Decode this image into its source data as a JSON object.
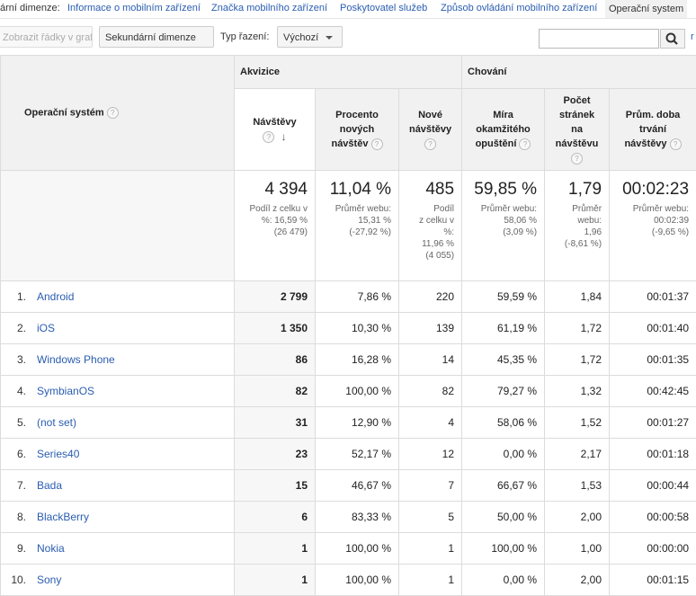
{
  "primary_dimension": {
    "label": "ární dimenze:",
    "links": [
      "Informace o mobilním zařízení",
      "Značka mobilního zařízení",
      "Poskytovatel služeb",
      "Způsob ovládání mobilního zařízení"
    ],
    "active": "Operační system"
  },
  "toolbar": {
    "plot_rows": "Zobrazit řádky v grafu",
    "secondary_dimension": "Sekundární dimenze",
    "sort_type_label": "Typ řazení:",
    "sort_type_value": "Výchozí",
    "search_placeholder": "",
    "right_link": "r"
  },
  "table": {
    "dimension_header": "Operační systém",
    "group_headers": [
      "Akvizice",
      "Chování"
    ],
    "metric_headers": [
      {
        "lines": [
          "Návštěvy"
        ]
      },
      {
        "lines": [
          "Procento",
          "nových",
          "návštěv"
        ]
      },
      {
        "lines": [
          "Nové",
          "návštěvy"
        ]
      },
      {
        "lines": [
          "Míra",
          "okamžitého",
          "opuštění"
        ]
      },
      {
        "lines": [
          "Počet",
          "stránek",
          "na",
          "návštěvu"
        ]
      },
      {
        "lines": [
          "Prům. doba",
          "trvání",
          "návštěvy"
        ]
      }
    ],
    "totals": [
      {
        "value": "4 394",
        "sub": [
          "Podíl z celku v",
          "%: 16,59 %",
          "(26 479)"
        ]
      },
      {
        "value": "11,04 %",
        "sub": [
          "Průměr webu:",
          "15,31 %",
          "(-27,92 %)"
        ]
      },
      {
        "value": "485",
        "sub": [
          "Podíl",
          "z celku v",
          "%:",
          "11,96 %",
          "(4 055)"
        ]
      },
      {
        "value": "59,85 %",
        "sub": [
          "Průměr webu:",
          "58,06 %",
          "(3,09 %)"
        ]
      },
      {
        "value": "1,79",
        "sub": [
          "Průměr",
          "webu:",
          "1,96",
          "(-8,61 %)"
        ]
      },
      {
        "value": "00:02:23",
        "sub": [
          "Průměr webu:",
          "00:02:39",
          "(-9,65 %)"
        ]
      }
    ],
    "rows": [
      {
        "idx": "1.",
        "name": "Android",
        "cells": [
          "2 799",
          "7,86 %",
          "220",
          "59,59 %",
          "1,84",
          "00:01:37"
        ]
      },
      {
        "idx": "2.",
        "name": "iOS",
        "cells": [
          "1 350",
          "10,30 %",
          "139",
          "61,19 %",
          "1,72",
          "00:01:40"
        ]
      },
      {
        "idx": "3.",
        "name": "Windows Phone",
        "cells": [
          "86",
          "16,28 %",
          "14",
          "45,35 %",
          "1,72",
          "00:01:35"
        ]
      },
      {
        "idx": "4.",
        "name": "SymbianOS",
        "cells": [
          "82",
          "100,00 %",
          "82",
          "79,27 %",
          "1,32",
          "00:42:45"
        ]
      },
      {
        "idx": "5.",
        "name": "(not set)",
        "cells": [
          "31",
          "12,90 %",
          "4",
          "58,06 %",
          "1,52",
          "00:01:27"
        ]
      },
      {
        "idx": "6.",
        "name": "Series40",
        "cells": [
          "23",
          "52,17 %",
          "12",
          "0,00 %",
          "2,17",
          "00:01:18"
        ]
      },
      {
        "idx": "7.",
        "name": "Bada",
        "cells": [
          "15",
          "46,67 %",
          "7",
          "66,67 %",
          "1,53",
          "00:00:44"
        ]
      },
      {
        "idx": "8.",
        "name": "BlackBerry",
        "cells": [
          "6",
          "83,33 %",
          "5",
          "50,00 %",
          "2,00",
          "00:00:58"
        ]
      },
      {
        "idx": "9.",
        "name": "Nokia",
        "cells": [
          "1",
          "100,00 %",
          "1",
          "100,00 %",
          "1,00",
          "00:00:00"
        ]
      },
      {
        "idx": "10.",
        "name": "Sony",
        "cells": [
          "1",
          "100,00 %",
          "1",
          "0,00 %",
          "2,00",
          "00:01:15"
        ]
      }
    ]
  },
  "icons": {
    "help": "question-mark-icon",
    "sort": "arrow-down-icon",
    "search": "search-icon"
  },
  "colors": {
    "link": "#2a5db0",
    "header_bg": "#f1f1f1"
  }
}
